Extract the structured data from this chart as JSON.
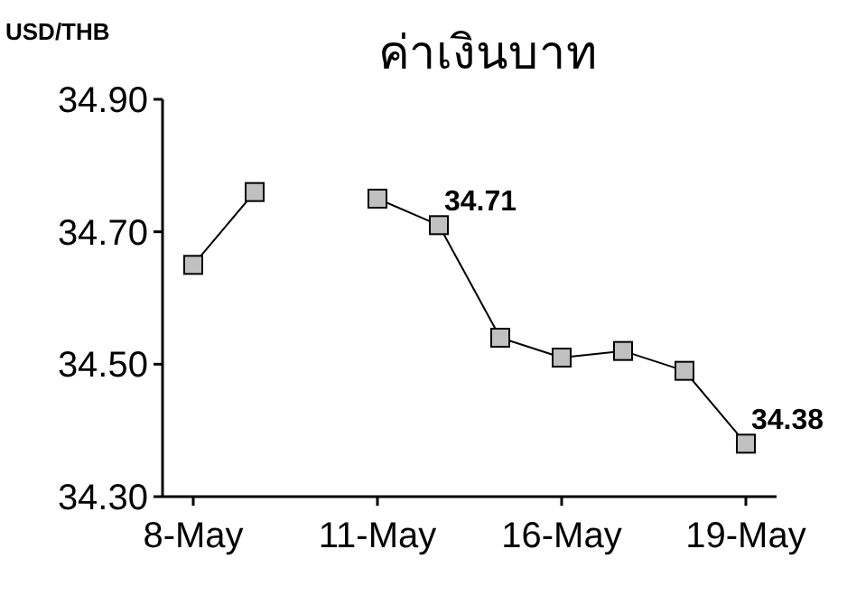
{
  "chart_data": {
    "type": "line",
    "title": "ค่าเงินบาท",
    "ylabel": "USD/THB",
    "categories": [
      "8-May",
      null,
      null,
      "11-May",
      null,
      null,
      "16-May",
      null,
      null,
      "19-May"
    ],
    "series": [
      {
        "color": "#c0c0c0",
        "values": [
          34.65,
          34.76,
          null,
          34.75,
          34.71,
          34.54,
          34.51,
          34.52,
          34.49,
          34.38
        ],
        "value_labels": [
          null,
          null,
          null,
          null,
          "34.71",
          null,
          null,
          null,
          null,
          "34.38"
        ]
      }
    ],
    "ylim": [
      34.3,
      34.9
    ],
    "yticks": [
      {
        "value": 34.3,
        "label": "34.30"
      },
      {
        "value": 34.5,
        "label": "34.50"
      },
      {
        "value": 34.7,
        "label": "34.70"
      },
      {
        "value": 34.9,
        "label": "34.90"
      }
    ],
    "marker": "square",
    "line_style": "solid",
    "grid": false
  }
}
